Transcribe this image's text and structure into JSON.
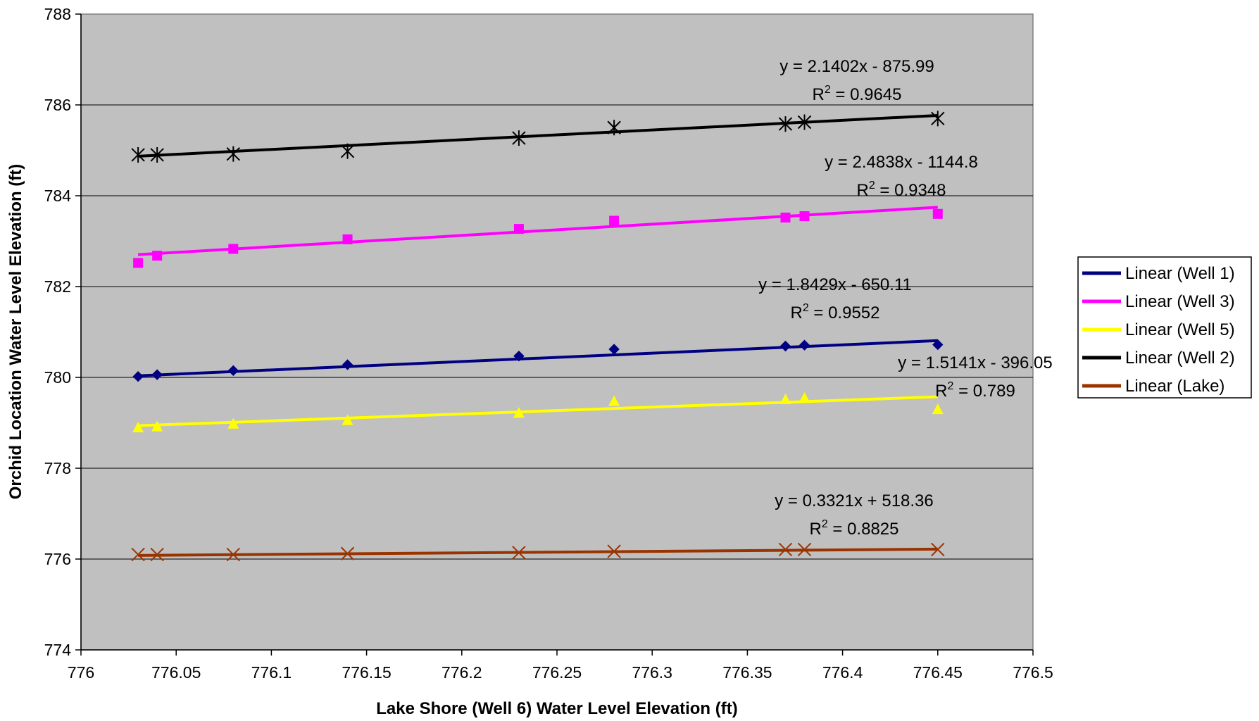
{
  "chart_data": {
    "type": "scatter",
    "xlabel": "Lake Shore (Well 6) Water Level Elevation (ft)",
    "ylabel": "Orchid Location Water Level Elevation (ft)",
    "xlim": [
      776,
      776.5
    ],
    "ylim": [
      774,
      788
    ],
    "x_ticks": [
      "776",
      "776.05",
      "776.1",
      "776.15",
      "776.2",
      "776.25",
      "776.3",
      "776.35",
      "776.4",
      "776.45",
      "776.5"
    ],
    "y_ticks": [
      "774",
      "776",
      "778",
      "780",
      "782",
      "784",
      "786",
      "788"
    ],
    "grid": "horizontal",
    "plot_background": "#c0c0c0",
    "legend_position": "right",
    "x": [
      776.03,
      776.04,
      776.08,
      776.14,
      776.23,
      776.28,
      776.37,
      776.38,
      776.45
    ],
    "series": [
      {
        "name": "Well 2",
        "color": "#000000",
        "marker": "asterisk",
        "values": [
          784.9,
          784.9,
          784.92,
          784.98,
          785.27,
          785.5,
          785.58,
          785.62,
          785.7
        ],
        "trendline": {
          "legend": "Linear (Well 2)",
          "slope": 2.1402,
          "intercept": -875.99,
          "equation": "y = 2.1402x - 875.99",
          "r2_label": "R",
          "r2_value": " = 0.9645"
        }
      },
      {
        "name": "Well 3",
        "color": "#ff00ff",
        "marker": "square",
        "values": [
          782.52,
          782.68,
          782.83,
          783.04,
          783.27,
          783.45,
          783.52,
          783.55,
          783.6
        ],
        "trendline": {
          "legend": "Linear (Well 3)",
          "slope": 2.4838,
          "intercept": -1144.8,
          "equation": "y = 2.4838x - 1144.8",
          "r2_label": "R",
          "r2_value": " = 0.9348"
        }
      },
      {
        "name": "Well 1",
        "color": "#000080",
        "marker": "diamond",
        "values": [
          780.02,
          780.06,
          780.15,
          780.28,
          780.47,
          780.62,
          780.69,
          780.71,
          780.72
        ],
        "trendline": {
          "legend": "Linear (Well 1)",
          "slope": 1.8429,
          "intercept": -650.11,
          "equation": "y = 1.8429x - 650.11",
          "r2_label": "R",
          "r2_value": " = 0.9552"
        }
      },
      {
        "name": "Well 5",
        "color": "#ffff00",
        "marker": "triangle",
        "values": [
          778.9,
          778.92,
          778.98,
          779.06,
          779.22,
          779.48,
          779.52,
          779.55,
          779.3
        ],
        "trendline": {
          "legend": "Linear (Well 5)",
          "slope": 1.5141,
          "intercept": -396.05,
          "equation": "y = 1.5141x - 396.05",
          "r2_label": "R",
          "r2_value": " = 0.789"
        }
      },
      {
        "name": "Lake",
        "color": "#993300",
        "marker": "x",
        "values": [
          776.1,
          776.1,
          776.1,
          776.12,
          776.14,
          776.17,
          776.21,
          776.21,
          776.21
        ],
        "trendline": {
          "legend": "Linear (Lake)",
          "slope": 0.3321,
          "intercept": 518.36,
          "equation": "y = 0.3321x + 518.36",
          "r2_label": "R",
          "r2_value": " = 0.8825"
        }
      }
    ],
    "legend_entries": [
      {
        "label": "Linear (Well 1)",
        "color": "#000080"
      },
      {
        "label": "Linear (Well 3)",
        "color": "#ff00ff"
      },
      {
        "label": "Linear (Well 5)",
        "color": "#ffff00"
      },
      {
        "label": "Linear (Well 2)",
        "color": "#000000"
      },
      {
        "label": "Linear (Lake)",
        "color": "#993300"
      }
    ]
  }
}
